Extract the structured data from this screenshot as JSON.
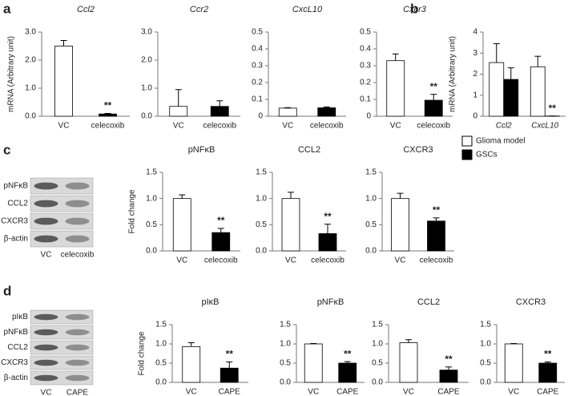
{
  "figure": {
    "panel_labels": [
      "a",
      "b",
      "c",
      "d"
    ],
    "blots": [
      {
        "rows": [
          "pNFκB",
          "CCL2",
          "CXCR3",
          "β-actin"
        ],
        "lanes": [
          "VC",
          "celecoxib"
        ]
      },
      {
        "rows": [
          "pIκB",
          "pNFκB",
          "CCL2",
          "CXCR3",
          "β-actin"
        ],
        "lanes": [
          "VC",
          "CAPE"
        ]
      }
    ]
  },
  "chart_data": [
    {
      "type": "bar",
      "title": "Ccl2",
      "title_style": "italic",
      "ylabel": "mRNA (Arbitrary unit)",
      "categories": [
        "VC",
        "celecoxib"
      ],
      "values": [
        2.5,
        0.08
      ],
      "errors": [
        0.2,
        0.02
      ],
      "significance": [
        null,
        "**"
      ],
      "colors": [
        "#ffffff",
        "#000000"
      ],
      "ylim": [
        0,
        3
      ],
      "yticks": [
        {
          "value": 0,
          "label": "0.0"
        },
        {
          "value": 1,
          "label": "1.0"
        },
        {
          "value": 2,
          "label": "2.0"
        },
        {
          "value": 3,
          "label": "3.0"
        }
      ]
    },
    {
      "type": "bar",
      "title": "Ccr2",
      "title_style": "italic",
      "categories": [
        "VC",
        "celecoxib"
      ],
      "values": [
        0.35,
        0.35
      ],
      "errors": [
        0.6,
        0.2
      ],
      "significance": [
        null,
        null
      ],
      "colors": [
        "#ffffff",
        "#000000"
      ],
      "ylim": [
        0,
        3
      ],
      "yticks": [
        {
          "value": 0,
          "label": "0.0"
        },
        {
          "value": 1,
          "label": "1.0"
        },
        {
          "value": 2,
          "label": "2.0"
        },
        {
          "value": 3,
          "label": "3.0"
        }
      ]
    },
    {
      "type": "bar",
      "title": "CxcL10",
      "title_style": "italic",
      "categories": [
        "VC",
        "celecoxib"
      ],
      "values": [
        0.048,
        0.05
      ],
      "errors": [
        0.003,
        0.005
      ],
      "significance": [
        null,
        null
      ],
      "colors": [
        "#ffffff",
        "#000000"
      ],
      "ylim": [
        0,
        0.5
      ],
      "yticks": [
        0,
        0.1,
        0.2,
        0.3,
        0.4,
        0.5
      ]
    },
    {
      "type": "bar",
      "title": "Cxcr3",
      "title_style": "italic",
      "categories": [
        "VC",
        "celecoxib"
      ],
      "values": [
        0.33,
        0.095
      ],
      "errors": [
        0.04,
        0.035
      ],
      "significance": [
        null,
        "**"
      ],
      "colors": [
        "#ffffff",
        "#000000"
      ],
      "ylim": [
        0,
        0.5
      ],
      "yticks": [
        0,
        0.1,
        0.2,
        0.3,
        0.4,
        0.5
      ]
    },
    {
      "type": "grouped_bar",
      "ylabel": "mRNA (Arbitrary unit)",
      "category_style": "italic",
      "categories": [
        "Ccl2",
        "CxcL10"
      ],
      "legend": "bottom",
      "series": [
        {
          "name": "Glioma model",
          "color": "#ffffff",
          "values": [
            2.55,
            2.35
          ],
          "errors": [
            0.9,
            0.5
          ],
          "significance": [
            null,
            null
          ]
        },
        {
          "name": "GSCs",
          "color": "#000000",
          "values": [
            1.75,
            0.01
          ],
          "errors": [
            0.55,
            0
          ],
          "significance": [
            null,
            "**"
          ]
        }
      ],
      "ylim": [
        0,
        4
      ],
      "yticks": [
        0,
        1,
        2,
        3,
        4
      ]
    },
    {
      "type": "bar",
      "title": "pNFκB",
      "ylabel": "Fold change",
      "categories": [
        "VC",
        "celecoxib"
      ],
      "values": [
        1.0,
        0.35
      ],
      "errors": [
        0.07,
        0.08
      ],
      "significance": [
        null,
        "**"
      ],
      "colors": [
        "#ffffff",
        "#000000"
      ],
      "ylim": [
        0,
        1.5
      ],
      "yticks": [
        {
          "value": 0,
          "label": "0.0"
        },
        0.5,
        {
          "value": 1,
          "label": "1.0"
        },
        1.5
      ]
    },
    {
      "type": "bar",
      "title": "CCL2",
      "categories": [
        "VC",
        "celecoxib"
      ],
      "values": [
        1.0,
        0.33
      ],
      "errors": [
        0.12,
        0.18
      ],
      "significance": [
        null,
        "**"
      ],
      "colors": [
        "#ffffff",
        "#000000"
      ],
      "ylim": [
        0,
        1.5
      ],
      "yticks": [
        {
          "value": 0,
          "label": "0.0"
        },
        0.5,
        {
          "value": 1,
          "label": "1.0"
        },
        1.5
      ]
    },
    {
      "type": "bar",
      "title": "CXCR3",
      "categories": [
        "VC",
        "celecoxib"
      ],
      "values": [
        1.0,
        0.57
      ],
      "errors": [
        0.1,
        0.06
      ],
      "significance": [
        null,
        "**"
      ],
      "colors": [
        "#ffffff",
        "#000000"
      ],
      "ylim": [
        0,
        1.5
      ],
      "yticks": [
        {
          "value": 0,
          "label": "0.0"
        },
        0.5,
        {
          "value": 1,
          "label": "1.0"
        },
        1.5
      ]
    },
    {
      "type": "bar",
      "title": "pIκB",
      "ylabel": "Fold change",
      "categories": [
        "VC",
        "CAPE"
      ],
      "values": [
        0.93,
        0.37
      ],
      "errors": [
        0.1,
        0.16
      ],
      "significance": [
        null,
        "**"
      ],
      "colors": [
        "#ffffff",
        "#000000"
      ],
      "ylim": [
        0,
        1.5
      ],
      "yticks": [
        {
          "value": 0,
          "label": "0.0"
        },
        0.5,
        {
          "value": 1,
          "label": "1.0"
        },
        1.5
      ]
    },
    {
      "type": "bar",
      "title": "pNFκB",
      "categories": [
        "VC",
        "CAPE"
      ],
      "values": [
        1.0,
        0.5
      ],
      "errors": [
        0.01,
        0.04
      ],
      "significance": [
        null,
        "**"
      ],
      "colors": [
        "#ffffff",
        "#000000"
      ],
      "ylim": [
        0,
        1.5
      ],
      "yticks": [
        {
          "value": 0,
          "label": "0.0"
        },
        0.5,
        {
          "value": 1,
          "label": "1.0"
        },
        1.5
      ]
    },
    {
      "type": "bar",
      "title": "CCL2",
      "categories": [
        "VC",
        "CAPE"
      ],
      "values": [
        1.03,
        0.32
      ],
      "errors": [
        0.08,
        0.08
      ],
      "significance": [
        null,
        "**"
      ],
      "colors": [
        "#ffffff",
        "#000000"
      ],
      "ylim": [
        0,
        1.5
      ],
      "yticks": [
        {
          "value": 0,
          "label": "0.0"
        },
        0.5,
        {
          "value": 1,
          "label": "1.0"
        },
        1.5
      ]
    },
    {
      "type": "bar",
      "title": "CXCR3",
      "categories": [
        "VC",
        "CAPE"
      ],
      "values": [
        1.0,
        0.5
      ],
      "errors": [
        0.01,
        0.03
      ],
      "significance": [
        null,
        "**"
      ],
      "colors": [
        "#ffffff",
        "#000000"
      ],
      "ylim": [
        0,
        1.5
      ],
      "yticks": [
        {
          "value": 0,
          "label": "0.0"
        },
        0.5,
        {
          "value": 1,
          "label": "1.0"
        },
        1.5
      ]
    }
  ]
}
